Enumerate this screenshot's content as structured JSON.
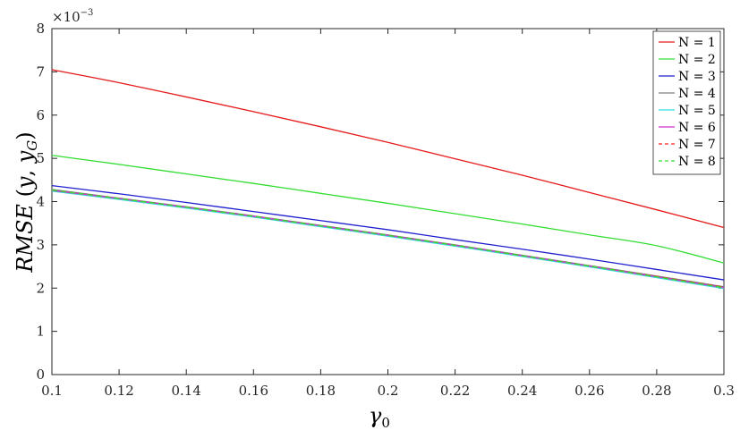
{
  "chart_data": {
    "type": "line",
    "ylabel": "RMSE (y, y_G)",
    "xlabel": "γ0",
    "y_multiplier": "×10^-3",
    "y_multiplier_base": "×10",
    "y_multiplier_exp": "−3",
    "xlim": [
      0.1,
      0.3
    ],
    "ylim": [
      0,
      8
    ],
    "xticks": [
      "0.1",
      "0.12",
      "0.14",
      "0.16",
      "0.18",
      "0.2",
      "0.22",
      "0.24",
      "0.26",
      "0.28",
      "0.3"
    ],
    "yticks": [
      "0",
      "1",
      "2",
      "3",
      "4",
      "5",
      "6",
      "7",
      "8"
    ],
    "x": [
      0.1,
      0.12,
      0.14,
      0.16,
      0.18,
      0.2,
      0.22,
      0.24,
      0.26,
      0.28,
      0.3
    ],
    "legend_position": "top-right",
    "grid": false,
    "series": [
      {
        "name": "N = 1",
        "color": "#e41a1c",
        "dash": "solid",
        "values": [
          7.05,
          6.75,
          6.42,
          6.08,
          5.73,
          5.37,
          4.99,
          4.61,
          4.21,
          3.81,
          3.4
        ]
      },
      {
        "name": "N = 2",
        "color": "#33dd33",
        "dash": "solid",
        "values": [
          5.07,
          4.86,
          4.64,
          4.42,
          4.19,
          3.96,
          3.72,
          3.48,
          3.23,
          2.98,
          2.58
        ]
      },
      {
        "name": "N = 3",
        "color": "#1f1fcf",
        "dash": "solid",
        "values": [
          4.37,
          4.18,
          3.98,
          3.77,
          3.56,
          3.35,
          3.12,
          2.9,
          2.67,
          2.43,
          2.19
        ]
      },
      {
        "name": "N = 4",
        "color": "#808080",
        "dash": "solid",
        "values": [
          4.28,
          4.08,
          3.88,
          3.67,
          3.45,
          3.23,
          3.0,
          2.76,
          2.52,
          2.28,
          2.03
        ]
      },
      {
        "name": "N = 5",
        "color": "#33dddd",
        "dash": "solid",
        "values": [
          4.24,
          4.05,
          3.85,
          3.64,
          3.42,
          3.2,
          2.97,
          2.73,
          2.49,
          2.24,
          1.99
        ]
      },
      {
        "name": "N = 6",
        "color": "#cc33cc",
        "dash": "solid",
        "values": [
          4.26,
          4.07,
          3.87,
          3.66,
          3.44,
          3.22,
          2.99,
          2.75,
          2.51,
          2.26,
          2.01
        ]
      },
      {
        "name": "N = 7",
        "color": "#ff2222",
        "dash": "dashed",
        "values": [
          4.27,
          4.07,
          3.87,
          3.66,
          3.44,
          3.22,
          2.99,
          2.75,
          2.51,
          2.27,
          2.02
        ]
      },
      {
        "name": "N = 8",
        "color": "#33dd33",
        "dash": "dashed",
        "values": [
          4.27,
          4.07,
          3.87,
          3.66,
          3.44,
          3.22,
          2.99,
          2.75,
          2.51,
          2.26,
          2.01
        ]
      }
    ]
  }
}
